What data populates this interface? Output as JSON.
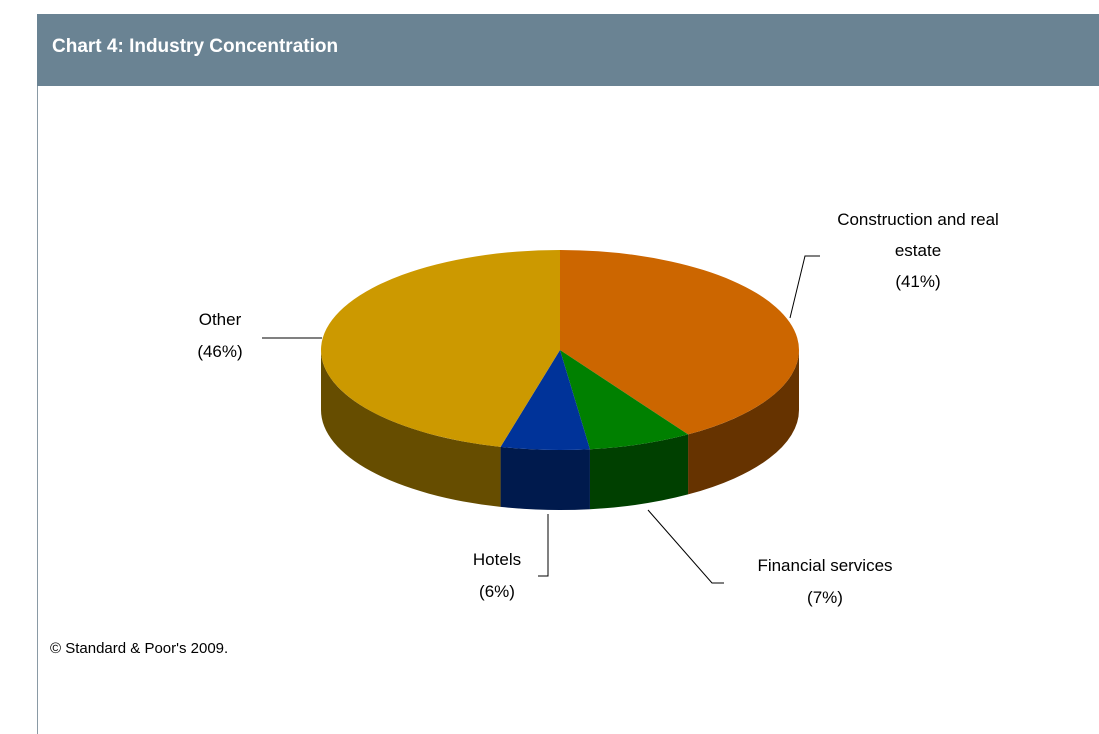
{
  "chart_data": {
    "type": "pie3d",
    "title": "Chart 4: Industry Concentration",
    "categories": [
      "Construction and real estate",
      "Financial services",
      "Hotels",
      "Other"
    ],
    "values": [
      41,
      7,
      6,
      46
    ],
    "value_labels": [
      "(41%)",
      "(7%)",
      "(6%)",
      "(46%)"
    ],
    "colors": [
      "#cc6600",
      "#008000",
      "#003399",
      "#cc9900"
    ],
    "footnote": "© Standard & Poor's 2009."
  }
}
